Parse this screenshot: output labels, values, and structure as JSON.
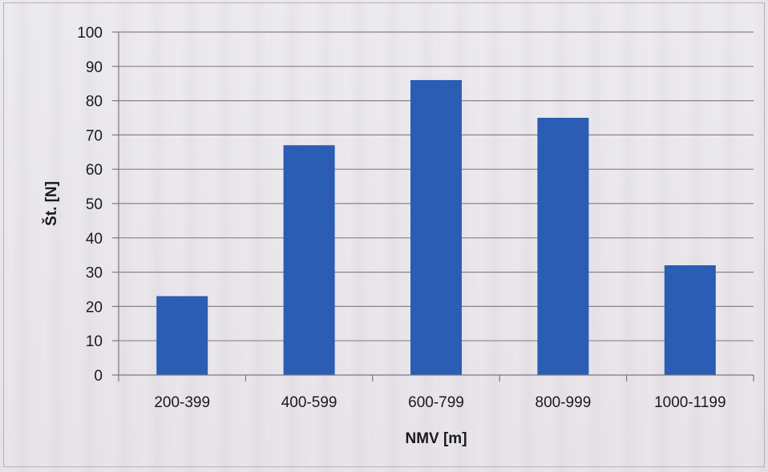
{
  "chart_data": {
    "type": "bar",
    "categories": [
      "200-399",
      "400-599",
      "600-799",
      "800-999",
      "1000-1199"
    ],
    "values": [
      23,
      67,
      86,
      75,
      32
    ],
    "title": "",
    "xlabel": "NMV [m]",
    "ylabel": "Št. [N]",
    "ylim": [
      0,
      100
    ],
    "yticks": [
      0,
      10,
      20,
      30,
      40,
      50,
      60,
      70,
      80,
      90,
      100
    ],
    "grid": true,
    "legend": "none",
    "colors": {
      "bar": "#2a5db3",
      "grid": "#8a8188",
      "axis": "#7d7680"
    }
  }
}
